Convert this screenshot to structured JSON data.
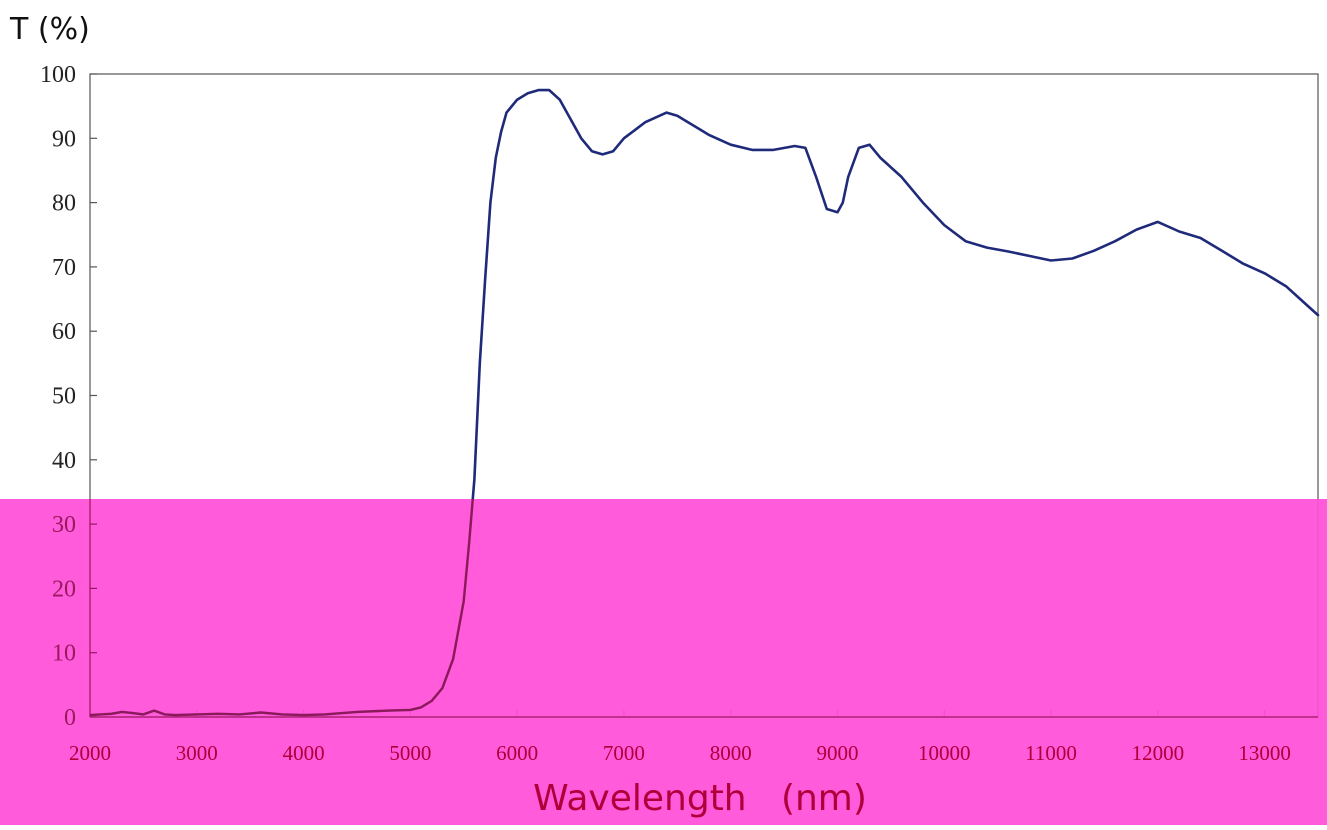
{
  "chart_data": {
    "type": "line",
    "ylabel": "T (%)",
    "xlabel": "Wavelength   (nm)",
    "xlim": [
      2000,
      13500
    ],
    "ylim": [
      0,
      100
    ],
    "x_ticks": [
      2000,
      3000,
      4000,
      5000,
      6000,
      7000,
      8000,
      9000,
      10000,
      11000,
      12000,
      13000
    ],
    "y_ticks": [
      0,
      10,
      20,
      30,
      40,
      50,
      60,
      70,
      80,
      90,
      100
    ],
    "grid": false,
    "colors": {
      "line": "#1f2a7a",
      "overlay": "#ff4fd8",
      "x_tick_text": "#b0003a",
      "axis": "#555555"
    },
    "series": [
      {
        "x": [
          2000,
          2200,
          2300,
          2400,
          2500,
          2600,
          2650,
          2700,
          2800,
          3000,
          3200,
          3400,
          3600,
          3800,
          4000,
          4200,
          4500,
          4800,
          5000,
          5100,
          5200,
          5300,
          5400,
          5500,
          5550,
          5600,
          5650,
          5700,
          5750,
          5800,
          5850,
          5900,
          6000,
          6100,
          6200,
          6300,
          6400,
          6500,
          6600,
          6700,
          6800,
          6900,
          7000,
          7200,
          7400,
          7500,
          7600,
          7800,
          8000,
          8200,
          8400,
          8600,
          8700,
          8800,
          8900,
          9000,
          9050,
          9100,
          9200,
          9300,
          9400,
          9600,
          9800,
          10000,
          10200,
          10400,
          10600,
          10800,
          11000,
          11200,
          11400,
          11600,
          11800,
          12000,
          12200,
          12400,
          12600,
          12800,
          13000,
          13200,
          13400,
          13500
        ],
        "y": [
          0.3,
          0.5,
          0.8,
          0.6,
          0.4,
          1.0,
          0.7,
          0.4,
          0.3,
          0.4,
          0.5,
          0.4,
          0.7,
          0.4,
          0.3,
          0.4,
          0.8,
          1.0,
          1.1,
          1.5,
          2.5,
          4.5,
          9,
          18,
          27,
          37,
          55,
          68,
          80,
          87,
          91,
          94,
          96,
          97,
          97.5,
          97.5,
          96,
          93,
          90,
          88,
          87.5,
          88,
          90,
          92.5,
          94,
          93.5,
          92.5,
          90.5,
          89,
          88.2,
          88.2,
          88.8,
          88.5,
          84,
          79,
          78.5,
          80,
          84,
          88.5,
          89,
          87,
          84,
          80,
          76.5,
          74,
          73,
          72.4,
          71.7,
          71,
          71.3,
          72.5,
          74,
          75.8,
          77,
          75.5,
          74.5,
          72.5,
          70.5,
          69,
          67,
          64,
          62.5
        ]
      }
    ]
  }
}
